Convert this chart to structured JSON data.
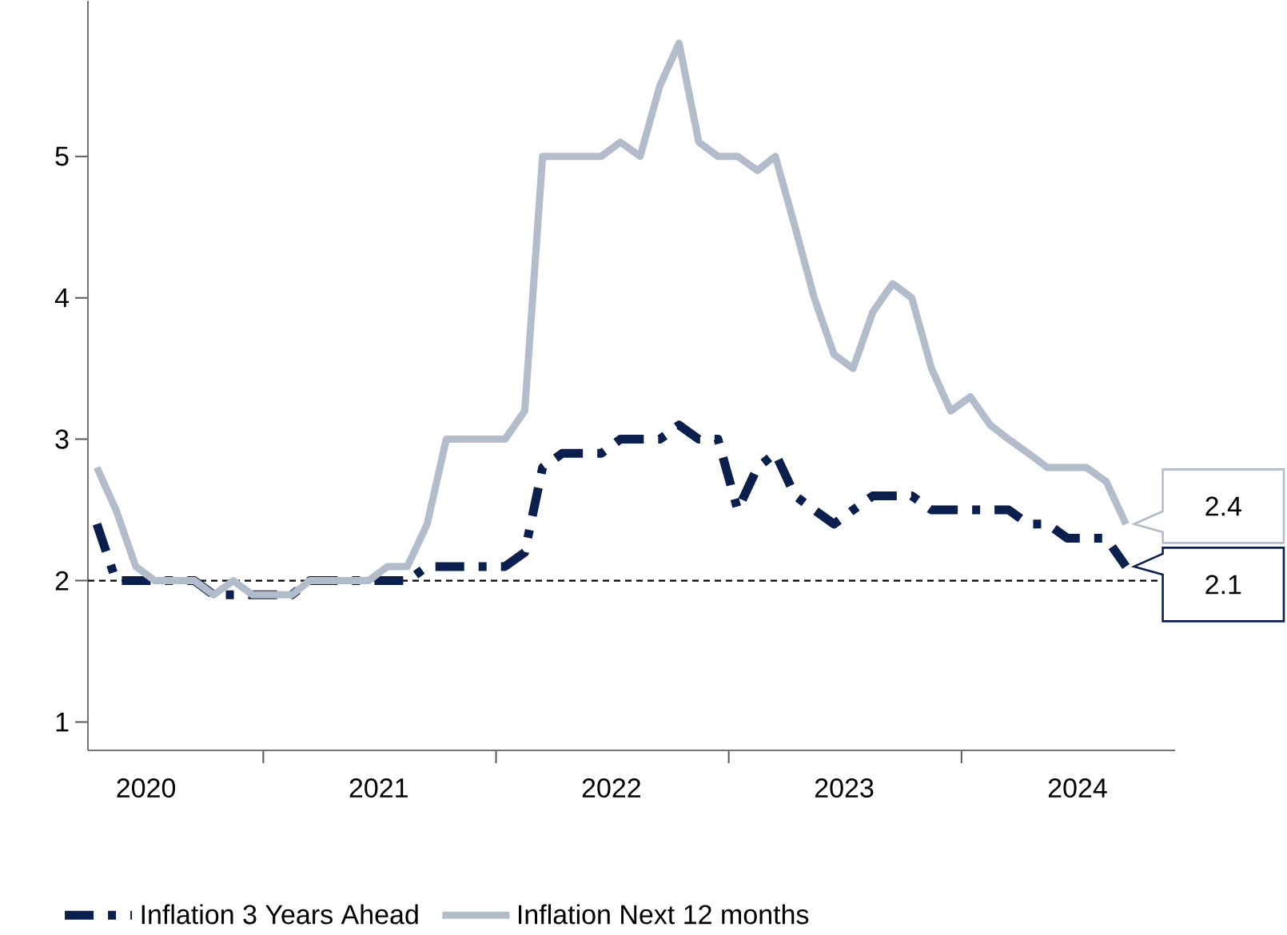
{
  "chart_data": {
    "type": "line",
    "x": [
      "2020-04-15",
      "2020-05-15",
      "2020-06-15",
      "2020-07-15",
      "2020-08-15",
      "2020-09-15",
      "2020-10-15",
      "2020-11-15",
      "2020-12-15",
      "2021-01-15",
      "2021-02-15",
      "2021-03-15",
      "2021-04-15",
      "2021-05-15",
      "2021-06-15",
      "2021-07-15",
      "2021-08-15",
      "2021-09-15",
      "2021-10-15",
      "2021-11-15",
      "2021-12-15",
      "2022-01-15",
      "2022-02-15",
      "2022-03-15",
      "2022-04-15",
      "2022-05-15",
      "2022-06-15",
      "2022-07-15",
      "2022-08-15",
      "2022-09-15",
      "2022-10-15",
      "2022-11-15",
      "2022-12-15",
      "2023-01-15",
      "2023-02-15",
      "2023-03-15",
      "2023-04-15",
      "2023-05-15",
      "2023-06-15",
      "2023-07-15",
      "2023-08-15",
      "2023-09-15",
      "2023-10-15",
      "2023-11-15",
      "2023-12-15",
      "2024-01-15",
      "2024-02-15",
      "2024-03-15",
      "2024-04-15",
      "2024-05-15",
      "2024-06-15",
      "2024-07-15",
      "2024-08-15",
      "2024-09-15"
    ],
    "series": [
      {
        "name": "Inflation 3 Years Ahead",
        "color": "#0b1f4f",
        "line_style": "dashed",
        "values": [
          2.4,
          2.0,
          2.0,
          2.0,
          2.0,
          2.0,
          1.9,
          1.9,
          1.9,
          1.9,
          1.9,
          2.0,
          2.0,
          2.0,
          2.0,
          2.0,
          2.0,
          2.1,
          2.1,
          2.1,
          2.1,
          2.1,
          2.2,
          2.8,
          2.9,
          2.9,
          2.9,
          3.0,
          3.0,
          3.0,
          3.1,
          3.0,
          3.0,
          2.5,
          2.8,
          2.9,
          2.6,
          2.5,
          2.4,
          2.5,
          2.6,
          2.6,
          2.6,
          2.5,
          2.5,
          2.5,
          2.5,
          2.5,
          2.4,
          2.4,
          2.3,
          2.3,
          2.3,
          2.1
        ]
      },
      {
        "name": "Inflation Next 12 months",
        "color": "#b3bccb",
        "line_style": "solid",
        "values": [
          2.8,
          2.5,
          2.1,
          2.0,
          2.0,
          2.0,
          1.9,
          2.0,
          1.9,
          1.9,
          1.9,
          2.0,
          2.0,
          2.0,
          2.0,
          2.1,
          2.1,
          2.4,
          3.0,
          3.0,
          3.0,
          3.0,
          3.2,
          5.0,
          5.0,
          5.0,
          5.0,
          5.1,
          5.0,
          5.5,
          5.8,
          5.1,
          5.0,
          5.0,
          4.9,
          5.0,
          4.5,
          4.0,
          3.6,
          3.5,
          3.9,
          4.1,
          4.0,
          3.5,
          3.2,
          3.3,
          3.1,
          3.0,
          2.9,
          2.8,
          2.8,
          2.8,
          2.7,
          2.4
        ]
      }
    ],
    "xlim": [
      "2020-04",
      "2024-12"
    ],
    "xticks": [
      {
        "value": "2020-07",
        "label": "2020"
      },
      {
        "value": "2021-01",
        "label": null
      },
      {
        "value": "2021-07",
        "label": "2021"
      },
      {
        "value": "2022-01",
        "label": null
      },
      {
        "value": "2022-07",
        "label": "2022"
      },
      {
        "value": "2023-01",
        "label": null
      },
      {
        "value": "2023-07",
        "label": "2023"
      },
      {
        "value": "2024-01",
        "label": null
      },
      {
        "value": "2024-07",
        "label": "2024"
      }
    ],
    "ylim": [
      0.8,
      6.1
    ],
    "yticks": [
      1,
      2,
      3,
      4,
      5
    ],
    "ref_lines": [
      {
        "axis": "y",
        "value": 2,
        "color": "#000000",
        "line_style": "dashed"
      }
    ],
    "annotations": [
      {
        "text": "2.1",
        "x": "2024-09-15",
        "y": 2.1
      },
      {
        "text": "2.4",
        "x": "2024-09-15",
        "y": 2.4
      }
    ],
    "legend": "bottom",
    "marker": "none"
  }
}
